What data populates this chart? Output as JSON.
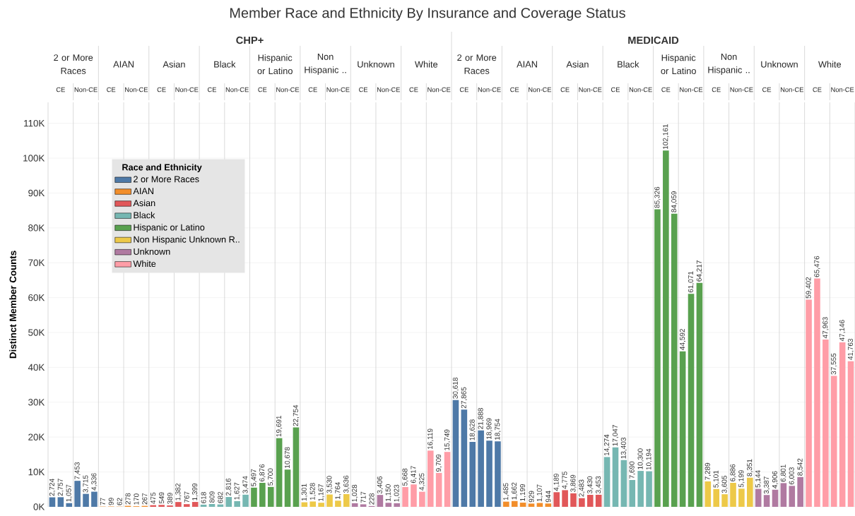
{
  "chart_data": {
    "type": "bar",
    "title": "Member Race and Ethnicity By Insurance and Coverage Status",
    "ylabel": "Distinct Member Counts",
    "legend_title": "Race and Ethnicity",
    "categories": [
      null,
      null,
      null,
      null,
      null,
      null,
      null,
      null,
      null,
      null,
      null,
      null,
      null,
      null,
      null,
      null,
      null,
      null,
      null,
      null,
      null,
      null,
      null,
      null,
      null,
      null,
      null,
      null,
      null,
      null,
      null,
      null,
      null,
      null,
      null,
      null,
      null,
      null,
      null,
      null,
      null,
      null,
      null,
      null,
      null,
      null,
      null,
      null,
      null,
      null,
      null,
      null,
      null,
      null,
      null,
      null,
      null,
      null,
      null,
      null,
      null,
      null,
      null,
      null,
      null,
      null,
      null,
      null,
      null,
      null,
      null,
      null,
      null,
      null,
      null,
      null,
      null,
      null,
      null,
      null,
      null,
      null,
      null,
      null,
      null,
      null,
      null,
      null,
      null,
      null,
      null,
      null,
      null,
      null,
      null,
      null
    ],
    "series": [
      {
        "name": "2 or More Races",
        "color": "#4e79a7",
        "values": [
          2724,
          2757,
          1057,
          7453,
          3715,
          4336,
          null,
          null,
          null,
          null,
          null,
          null,
          null,
          null,
          null,
          null,
          null,
          null,
          null,
          null,
          null,
          null,
          null,
          null,
          null,
          null,
          null,
          null,
          null,
          null,
          null,
          null,
          null,
          null,
          null,
          null,
          null,
          null,
          null,
          null,
          null,
          null,
          null,
          null,
          null,
          null,
          null,
          null,
          30618,
          27865,
          18628,
          21888,
          18969,
          18754,
          null,
          null,
          null,
          null,
          null,
          null,
          null,
          null,
          null,
          null,
          null,
          null,
          null,
          null,
          null,
          null,
          null,
          null,
          null,
          null,
          null,
          null,
          null,
          null,
          null,
          null,
          null,
          null,
          null,
          null,
          null,
          null,
          null,
          null,
          null,
          null,
          null,
          null,
          null,
          null,
          null,
          null
        ],
        "value_labels": [
          "2,724",
          "2,757",
          "1,057",
          "7,453",
          "3,715",
          "4,336",
          null,
          null,
          null,
          null,
          null,
          null,
          null,
          null,
          null,
          null,
          null,
          null,
          null,
          null,
          null,
          null,
          null,
          null,
          null,
          null,
          null,
          null,
          null,
          null,
          null,
          null,
          null,
          null,
          null,
          null,
          null,
          null,
          null,
          null,
          null,
          null,
          null,
          null,
          null,
          null,
          null,
          null,
          "30,618",
          "27,865",
          "18,628",
          "21,888",
          "18,969",
          "18,754",
          null,
          null,
          null,
          null,
          null,
          null,
          null,
          null,
          null,
          null,
          null,
          null,
          null,
          null,
          null,
          null,
          null,
          null,
          null,
          null,
          null,
          null,
          null,
          null,
          null,
          null,
          null,
          null,
          null,
          null,
          null,
          null,
          null,
          null,
          null,
          null,
          null,
          null,
          null,
          null,
          null,
          null
        ]
      },
      {
        "name": "AIAN",
        "color": "#f28e2b",
        "values": [
          null,
          null,
          null,
          null,
          null,
          null,
          77,
          99,
          62,
          278,
          170,
          267,
          null,
          null,
          null,
          null,
          null,
          null,
          null,
          null,
          null,
          null,
          null,
          null,
          null,
          null,
          null,
          null,
          null,
          null,
          null,
          null,
          null,
          null,
          null,
          null,
          null,
          null,
          null,
          null,
          null,
          null,
          null,
          null,
          null,
          null,
          null,
          null,
          null,
          null,
          null,
          null,
          null,
          null,
          1485,
          1662,
          1199,
          929,
          1107,
          944,
          null,
          null,
          null,
          null,
          null,
          null,
          null,
          null,
          null,
          null,
          null,
          null,
          null,
          null,
          null,
          null,
          null,
          null,
          null,
          null,
          null,
          null,
          null,
          null,
          null,
          null,
          null,
          null,
          null,
          null,
          null,
          null,
          null,
          null,
          null,
          null
        ],
        "value_labels": [
          null,
          null,
          null,
          null,
          null,
          null,
          "77",
          "99",
          "62",
          "278",
          "170",
          "267",
          null,
          null,
          null,
          null,
          null,
          null,
          null,
          null,
          null,
          null,
          null,
          null,
          null,
          null,
          null,
          null,
          null,
          null,
          null,
          null,
          null,
          null,
          null,
          null,
          null,
          null,
          null,
          null,
          null,
          null,
          null,
          null,
          null,
          null,
          null,
          null,
          null,
          null,
          null,
          null,
          null,
          null,
          "1,485",
          "1,662",
          "1,199",
          "929",
          "1,107",
          "944",
          null,
          null,
          null,
          null,
          null,
          null,
          null,
          null,
          null,
          null,
          null,
          null,
          null,
          null,
          null,
          null,
          null,
          null,
          null,
          null,
          null,
          null,
          null,
          null,
          null,
          null,
          null,
          null,
          null,
          null,
          null,
          null,
          null,
          null,
          null,
          null
        ]
      },
      {
        "name": "Asian",
        "color": "#e15759",
        "values": [
          null,
          null,
          null,
          null,
          null,
          null,
          null,
          null,
          null,
          null,
          null,
          null,
          475,
          549,
          389,
          1382,
          767,
          1399,
          null,
          null,
          null,
          null,
          null,
          null,
          null,
          null,
          null,
          null,
          null,
          null,
          null,
          null,
          null,
          null,
          null,
          null,
          null,
          null,
          null,
          null,
          null,
          null,
          null,
          null,
          null,
          null,
          null,
          null,
          null,
          null,
          null,
          null,
          null,
          null,
          null,
          null,
          null,
          null,
          null,
          null,
          4189,
          4775,
          3869,
          2483,
          3430,
          3453,
          null,
          null,
          null,
          null,
          null,
          null,
          null,
          null,
          null,
          null,
          null,
          null,
          null,
          null,
          null,
          null,
          null,
          null,
          null,
          null,
          null,
          null,
          null,
          null,
          null,
          null,
          null,
          null,
          null,
          null
        ],
        "value_labels": [
          null,
          null,
          null,
          null,
          null,
          null,
          null,
          null,
          null,
          null,
          null,
          null,
          "475",
          "549",
          "389",
          "1,382",
          "767",
          "1,399",
          null,
          null,
          null,
          null,
          null,
          null,
          null,
          null,
          null,
          null,
          null,
          null,
          null,
          null,
          null,
          null,
          null,
          null,
          null,
          null,
          null,
          null,
          null,
          null,
          null,
          null,
          null,
          null,
          null,
          null,
          null,
          null,
          null,
          null,
          null,
          null,
          null,
          null,
          null,
          null,
          null,
          null,
          "4,189",
          "4,775",
          "3,869",
          "2,483",
          "3,430",
          "3,453",
          null,
          null,
          null,
          null,
          null,
          null,
          null,
          null,
          null,
          null,
          null,
          null,
          null,
          null,
          null,
          null,
          null,
          null,
          null,
          null,
          null,
          null,
          null,
          null,
          null,
          null,
          null,
          null,
          null,
          null
        ]
      },
      {
        "name": "Black",
        "color": "#76b7b2",
        "values": [
          null,
          null,
          null,
          null,
          null,
          null,
          null,
          null,
          null,
          null,
          null,
          null,
          null,
          null,
          null,
          null,
          null,
          null,
          618,
          809,
          682,
          2816,
          1627,
          3474,
          null,
          null,
          null,
          null,
          null,
          null,
          null,
          null,
          null,
          null,
          null,
          null,
          null,
          null,
          null,
          null,
          null,
          null,
          null,
          null,
          null,
          null,
          null,
          null,
          null,
          null,
          null,
          null,
          null,
          null,
          null,
          null,
          null,
          null,
          null,
          null,
          null,
          null,
          null,
          null,
          null,
          null,
          14274,
          17047,
          13403,
          7690,
          10300,
          10194,
          null,
          null,
          null,
          null,
          null,
          null,
          null,
          null,
          null,
          null,
          null,
          null,
          null,
          null,
          null,
          null,
          null,
          null,
          null,
          null,
          null,
          null,
          null,
          null
        ],
        "value_labels": [
          null,
          null,
          null,
          null,
          null,
          null,
          null,
          null,
          null,
          null,
          null,
          null,
          null,
          null,
          null,
          null,
          null,
          null,
          "618",
          "809",
          "682",
          "2,816",
          "1,627",
          "3,474",
          null,
          null,
          null,
          null,
          null,
          null,
          null,
          null,
          null,
          null,
          null,
          null,
          null,
          null,
          null,
          null,
          null,
          null,
          null,
          null,
          null,
          null,
          null,
          null,
          null,
          null,
          null,
          null,
          null,
          null,
          null,
          null,
          null,
          null,
          null,
          null,
          null,
          null,
          null,
          null,
          null,
          null,
          "14,274",
          "17,047",
          "13,403",
          "7,690",
          "10,300",
          "10,194",
          null,
          null,
          null,
          null,
          null,
          null,
          null,
          null,
          null,
          null,
          null,
          null,
          null,
          null,
          null,
          null,
          null,
          null,
          null,
          null,
          null,
          null,
          null,
          null
        ]
      },
      {
        "name": "Hispanic or Latino",
        "color": "#59a14f",
        "values": [
          null,
          null,
          null,
          null,
          null,
          null,
          null,
          null,
          null,
          null,
          null,
          null,
          null,
          null,
          null,
          null,
          null,
          null,
          null,
          null,
          null,
          null,
          null,
          null,
          5497,
          6876,
          5700,
          19691,
          10678,
          22754,
          null,
          null,
          null,
          null,
          null,
          null,
          null,
          null,
          null,
          null,
          null,
          null,
          null,
          null,
          null,
          null,
          null,
          null,
          null,
          null,
          null,
          null,
          null,
          null,
          null,
          null,
          null,
          null,
          null,
          null,
          null,
          null,
          null,
          null,
          null,
          null,
          null,
          null,
          null,
          null,
          null,
          null,
          85326,
          102161,
          84059,
          44592,
          61071,
          64217,
          null,
          null,
          null,
          null,
          null,
          null,
          null,
          null,
          null,
          null,
          null,
          null,
          null,
          null,
          null,
          null,
          null,
          null
        ],
        "value_labels": [
          null,
          null,
          null,
          null,
          null,
          null,
          null,
          null,
          null,
          null,
          null,
          null,
          null,
          null,
          null,
          null,
          null,
          null,
          null,
          null,
          null,
          null,
          null,
          null,
          "5,497",
          "6,876",
          "5,700",
          "19,691",
          "10,678",
          "22,754",
          null,
          null,
          null,
          null,
          null,
          null,
          null,
          null,
          null,
          null,
          null,
          null,
          null,
          null,
          null,
          null,
          null,
          null,
          null,
          null,
          null,
          null,
          null,
          null,
          null,
          null,
          null,
          null,
          null,
          null,
          null,
          null,
          null,
          null,
          null,
          null,
          null,
          null,
          null,
          null,
          null,
          null,
          "85,326",
          "102,161",
          "84,059",
          "44,592",
          "61,071",
          "64,217",
          null,
          null,
          null,
          null,
          null,
          null,
          null,
          null,
          null,
          null,
          null,
          null,
          null,
          null,
          null,
          null,
          null,
          null
        ]
      },
      {
        "name": "Non Hispanic Unknown R..",
        "color": "#edc948",
        "values": [
          null,
          null,
          null,
          null,
          null,
          null,
          null,
          null,
          null,
          null,
          null,
          null,
          null,
          null,
          null,
          null,
          null,
          null,
          null,
          null,
          null,
          null,
          null,
          null,
          null,
          null,
          null,
          null,
          null,
          null,
          1301,
          1528,
          1167,
          3530,
          1764,
          3636,
          null,
          null,
          null,
          null,
          null,
          null,
          null,
          null,
          null,
          null,
          null,
          null,
          null,
          null,
          null,
          null,
          null,
          null,
          null,
          null,
          null,
          null,
          null,
          null,
          null,
          null,
          null,
          null,
          null,
          null,
          null,
          null,
          null,
          null,
          null,
          null,
          null,
          null,
          null,
          null,
          null,
          null,
          7289,
          5101,
          3605,
          6886,
          5199,
          8351,
          null,
          null,
          null,
          null,
          null,
          null,
          null,
          null,
          null,
          null,
          null,
          null
        ],
        "value_labels": [
          null,
          null,
          null,
          null,
          null,
          null,
          null,
          null,
          null,
          null,
          null,
          null,
          null,
          null,
          null,
          null,
          null,
          null,
          null,
          null,
          null,
          null,
          null,
          null,
          null,
          null,
          null,
          null,
          null,
          null,
          "1,301",
          "1,528",
          "1,167",
          "3,530",
          "1,764",
          "3,636",
          null,
          null,
          null,
          null,
          null,
          null,
          null,
          null,
          null,
          null,
          null,
          null,
          null,
          null,
          null,
          null,
          null,
          null,
          null,
          null,
          null,
          null,
          null,
          null,
          null,
          null,
          null,
          null,
          null,
          null,
          null,
          null,
          null,
          null,
          null,
          null,
          null,
          null,
          null,
          null,
          null,
          null,
          "7,289",
          "5,101",
          "3,605",
          "6,886",
          "5,199",
          "8,351",
          null,
          null,
          null,
          null,
          null,
          null,
          null,
          null,
          null,
          null,
          null,
          null
        ]
      },
      {
        "name": "Unknown",
        "color": "#b07aa1",
        "values": [
          null,
          null,
          null,
          null,
          null,
          null,
          null,
          null,
          null,
          null,
          null,
          null,
          null,
          null,
          null,
          null,
          null,
          null,
          null,
          null,
          null,
          null,
          null,
          null,
          null,
          null,
          null,
          null,
          null,
          null,
          null,
          null,
          null,
          null,
          null,
          null,
          1028,
          717,
          228,
          3406,
          1150,
          1023,
          null,
          null,
          null,
          null,
          null,
          null,
          null,
          null,
          null,
          null,
          null,
          null,
          null,
          null,
          null,
          null,
          null,
          null,
          null,
          null,
          null,
          null,
          null,
          null,
          null,
          null,
          null,
          null,
          null,
          null,
          null,
          null,
          null,
          null,
          null,
          null,
          null,
          null,
          null,
          null,
          null,
          null,
          5144,
          3387,
          4906,
          6801,
          6003,
          8542,
          null,
          null,
          null,
          null,
          null,
          null
        ],
        "value_labels": [
          null,
          null,
          null,
          null,
          null,
          null,
          null,
          null,
          null,
          null,
          null,
          null,
          null,
          null,
          null,
          null,
          null,
          null,
          null,
          null,
          null,
          null,
          null,
          null,
          null,
          null,
          null,
          null,
          null,
          null,
          null,
          null,
          null,
          null,
          null,
          null,
          "1,028",
          "717",
          "228",
          "3,406",
          "1,150",
          "1,023",
          null,
          null,
          null,
          null,
          null,
          null,
          null,
          null,
          null,
          null,
          null,
          null,
          null,
          null,
          null,
          null,
          null,
          null,
          null,
          null,
          null,
          null,
          null,
          null,
          null,
          null,
          null,
          null,
          null,
          null,
          null,
          null,
          null,
          null,
          null,
          null,
          null,
          null,
          null,
          null,
          null,
          null,
          "5,144",
          "3,387",
          "4,906",
          "6,801",
          "6,003",
          "8,542",
          null,
          null,
          null,
          null,
          null,
          null
        ]
      },
      {
        "name": "White",
        "color": "#ff9da7",
        "values": [
          null,
          null,
          null,
          null,
          null,
          null,
          null,
          null,
          null,
          null,
          null,
          null,
          null,
          null,
          null,
          null,
          null,
          null,
          null,
          null,
          null,
          null,
          null,
          null,
          null,
          null,
          null,
          null,
          null,
          null,
          null,
          null,
          null,
          null,
          null,
          null,
          null,
          null,
          null,
          null,
          null,
          null,
          5668,
          6417,
          4325,
          16119,
          9709,
          15749,
          null,
          null,
          null,
          null,
          null,
          null,
          null,
          null,
          null,
          null,
          null,
          null,
          null,
          null,
          null,
          null,
          null,
          null,
          null,
          null,
          null,
          null,
          null,
          null,
          null,
          null,
          null,
          null,
          null,
          null,
          null,
          null,
          null,
          null,
          null,
          null,
          null,
          null,
          null,
          null,
          null,
          null,
          59402,
          65476,
          47963,
          37555,
          47146,
          41763
        ],
        "value_labels": [
          null,
          null,
          null,
          null,
          null,
          null,
          null,
          null,
          null,
          null,
          null,
          null,
          null,
          null,
          null,
          null,
          null,
          null,
          null,
          null,
          null,
          null,
          null,
          null,
          null,
          null,
          null,
          null,
          null,
          null,
          null,
          null,
          null,
          null,
          null,
          null,
          null,
          null,
          null,
          null,
          null,
          null,
          "5,668",
          "6,417",
          "4,325",
          "16,119",
          "9,709",
          "15,749",
          null,
          null,
          null,
          null,
          null,
          null,
          null,
          null,
          null,
          null,
          null,
          null,
          null,
          null,
          null,
          null,
          null,
          null,
          null,
          null,
          null,
          null,
          null,
          null,
          null,
          null,
          null,
          null,
          null,
          null,
          null,
          null,
          null,
          null,
          null,
          null,
          null,
          null,
          null,
          null,
          null,
          null,
          "59,402",
          "65,476",
          "47,963",
          "37,555",
          "47,146",
          "41,763"
        ]
      }
    ],
    "ylim": [
      0,
      116000
    ],
    "yticks": [
      {
        "value": 0,
        "label": "0K"
      },
      {
        "value": 10000,
        "label": "10K"
      },
      {
        "value": 20000,
        "label": "20K"
      },
      {
        "value": 30000,
        "label": "30K"
      },
      {
        "value": 40000,
        "label": "40K"
      },
      {
        "value": 50000,
        "label": "50K"
      },
      {
        "value": 60000,
        "label": "60K"
      },
      {
        "value": 70000,
        "label": "70K"
      },
      {
        "value": 80000,
        "label": "80K"
      },
      {
        "value": 90000,
        "label": "90K"
      },
      {
        "value": 100000,
        "label": "100K"
      },
      {
        "value": 110000,
        "label": "110K"
      }
    ],
    "grid": "y",
    "legend": "top left",
    "tick_labels": "y",
    "annotations": [
      "CHP+",
      "2 or More Races",
      "AIAN",
      "Asian",
      "Black",
      "Hispanic or Latino",
      "Non Hispanic ..",
      "Unknown",
      "White",
      "MEDICAID",
      "2 or More Races",
      "AIAN",
      "Asian",
      "Black",
      "Hispanic or Latino",
      "Non Hispanic ..",
      "Unknown",
      "White",
      "CE",
      "Non-CE",
      "CE",
      "Non-CE",
      "CE",
      "Non-CE",
      "CE",
      "Non-CE",
      "CE",
      "Non-CE",
      "CE",
      "Non-CE",
      "CE",
      "Non-CE",
      "CE",
      "Non-CE",
      "CE",
      "Non-CE",
      "CE",
      "Non-CE",
      "CE",
      "Non-CE",
      "CE",
      "Non-CE",
      "CE",
      "Non-CE",
      "CE",
      "Non-CE",
      "CE",
      "Non-CE",
      "CE",
      "Non-CE"
    ]
  }
}
